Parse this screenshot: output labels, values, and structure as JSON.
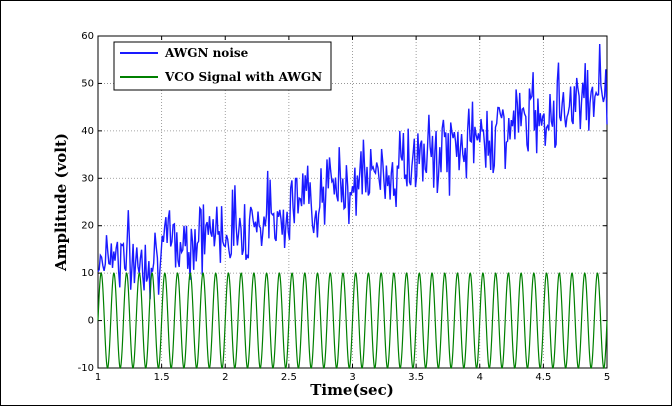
{
  "chart_data": {
    "type": "line",
    "xlabel": "Time(sec)",
    "ylabel": "Amplitude (volt)",
    "xlim": [
      1,
      5
    ],
    "ylim": [
      -10,
      60
    ],
    "xticks": [
      "1",
      "1.5",
      "2",
      "2.5",
      "3",
      "3.5",
      "4",
      "4.5",
      "5"
    ],
    "yticks": [
      "-10",
      "0",
      "10",
      "20",
      "30",
      "40",
      "50",
      "60"
    ],
    "grid": true,
    "legend_position": "top-left",
    "series": [
      {
        "name": "AWGN noise",
        "color": "#1a1aff",
        "x": [
          1.0,
          1.1,
          1.2,
          1.3,
          1.4,
          1.5,
          1.6,
          1.7,
          1.8,
          1.9,
          2.0,
          2.1,
          2.2,
          2.3,
          2.4,
          2.5,
          2.6,
          2.7,
          2.8,
          2.9,
          3.0,
          3.1,
          3.2,
          3.3,
          3.4,
          3.5,
          3.6,
          3.7,
          3.8,
          3.9,
          4.0,
          4.1,
          4.2,
          4.3,
          4.4,
          4.5,
          4.6,
          4.7,
          4.8,
          4.9,
          5.0
        ],
        "y": [
          13,
          15,
          14,
          12,
          14,
          15,
          16,
          17,
          18,
          19,
          19,
          20,
          21,
          22,
          22,
          24,
          26,
          26,
          27,
          29,
          29,
          30,
          31,
          31,
          33,
          34,
          34,
          36,
          36,
          38,
          38,
          40,
          41,
          42,
          43,
          44,
          45,
          46,
          48,
          49,
          50
        ],
        "noise_amplitude": 4
      },
      {
        "name": "VCO Signal with AWGN",
        "color": "#008000",
        "amplitude": 10,
        "cycles": 40
      }
    ]
  }
}
